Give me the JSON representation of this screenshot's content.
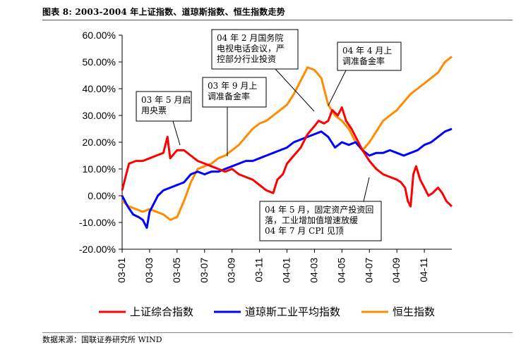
{
  "header": {
    "title": "图表 8:    2003-2004 年上证指数、道琼斯指数、恒生指数走势"
  },
  "footer": {
    "source": "数据来源：国联证券研究所  WIND"
  },
  "chart_data": {
    "type": "line",
    "ylim": [
      -20,
      60
    ],
    "y_ticks": [
      "60.00%",
      "50.00%",
      "40.00%",
      "30.00%",
      "20.00%",
      "10.00%",
      "0.00%",
      "-10.00%",
      "-20.00%"
    ],
    "y_tick_values": [
      60,
      50,
      40,
      30,
      20,
      10,
      0,
      -10,
      -20
    ],
    "x_ticks": [
      "03-01",
      "03-03",
      "03-05",
      "03-07",
      "03-09",
      "03-11",
      "04-01",
      "04-03",
      "04-05",
      "04-07",
      "04-09",
      "04-11"
    ],
    "x_range_months": [
      0,
      24
    ],
    "series": [
      {
        "name": "上证综合指数",
        "color": "#ff0000",
        "points": [
          [
            0,
            2
          ],
          [
            0.3,
            8
          ],
          [
            0.5,
            12
          ],
          [
            1,
            13
          ],
          [
            1.5,
            13
          ],
          [
            2,
            14
          ],
          [
            2.5,
            15
          ],
          [
            3,
            16
          ],
          [
            3.3,
            22
          ],
          [
            3.5,
            14
          ],
          [
            4,
            17
          ],
          [
            4.5,
            17
          ],
          [
            5,
            15
          ],
          [
            5.5,
            13
          ],
          [
            6,
            12
          ],
          [
            6.5,
            11
          ],
          [
            7,
            10
          ],
          [
            7.5,
            9
          ],
          [
            8,
            10
          ],
          [
            8.5,
            8
          ],
          [
            9,
            7
          ],
          [
            9.5,
            6
          ],
          [
            10,
            4
          ],
          [
            10.5,
            2
          ],
          [
            11,
            1
          ],
          [
            11.3,
            6
          ],
          [
            11.7,
            8
          ],
          [
            12,
            12
          ],
          [
            12.5,
            15
          ],
          [
            13,
            18
          ],
          [
            13.5,
            23
          ],
          [
            14,
            26
          ],
          [
            14.3,
            28
          ],
          [
            14.7,
            27
          ],
          [
            15,
            28
          ],
          [
            15.3,
            32
          ],
          [
            15.7,
            30
          ],
          [
            16,
            33
          ],
          [
            16.3,
            28
          ],
          [
            16.7,
            25
          ],
          [
            17,
            22
          ],
          [
            17.5,
            17
          ],
          [
            18,
            13
          ],
          [
            18.5,
            10
          ],
          [
            19,
            8
          ],
          [
            19.5,
            7
          ],
          [
            20,
            6
          ],
          [
            20.3,
            5
          ],
          [
            20.6,
            3
          ],
          [
            20.8,
            -2
          ],
          [
            21,
            -4
          ],
          [
            21.2,
            8
          ],
          [
            21.4,
            11
          ],
          [
            21.7,
            6
          ],
          [
            22,
            3
          ],
          [
            22.3,
            0
          ],
          [
            22.6,
            1
          ],
          [
            23,
            3
          ],
          [
            23.3,
            1
          ],
          [
            23.6,
            -2
          ],
          [
            24,
            -4
          ]
        ]
      },
      {
        "name": "道琼斯工业平均指数",
        "color": "#0000ff",
        "points": [
          [
            0,
            0
          ],
          [
            0.4,
            -4
          ],
          [
            0.8,
            -7
          ],
          [
            1.2,
            -8
          ],
          [
            1.5,
            -9
          ],
          [
            1.8,
            -12
          ],
          [
            2,
            -6
          ],
          [
            2.3,
            -3
          ],
          [
            2.6,
            0
          ],
          [
            3,
            2
          ],
          [
            3.5,
            3
          ],
          [
            4,
            4
          ],
          [
            4.5,
            5
          ],
          [
            5,
            8
          ],
          [
            5.5,
            9
          ],
          [
            6,
            8
          ],
          [
            6.5,
            9
          ],
          [
            7,
            9
          ],
          [
            7.5,
            10
          ],
          [
            8,
            11
          ],
          [
            8.5,
            12
          ],
          [
            9,
            13
          ],
          [
            9.5,
            13
          ],
          [
            10,
            14
          ],
          [
            10.5,
            15
          ],
          [
            11,
            16
          ],
          [
            11.5,
            17
          ],
          [
            12,
            18
          ],
          [
            12.5,
            20
          ],
          [
            13,
            21
          ],
          [
            13.5,
            22
          ],
          [
            14,
            23
          ],
          [
            14.5,
            24
          ],
          [
            15,
            22
          ],
          [
            15.5,
            18
          ],
          [
            16,
            20
          ],
          [
            16.5,
            19
          ],
          [
            17,
            20
          ],
          [
            17.5,
            17
          ],
          [
            18,
            15
          ],
          [
            18.5,
            16
          ],
          [
            19,
            16
          ],
          [
            19.5,
            17
          ],
          [
            20,
            16
          ],
          [
            20.5,
            15
          ],
          [
            21,
            16
          ],
          [
            21.5,
            17
          ],
          [
            22,
            19
          ],
          [
            22.5,
            20
          ],
          [
            23,
            22
          ],
          [
            23.5,
            24
          ],
          [
            24,
            25
          ]
        ]
      },
      {
        "name": "恒生指数",
        "color": "#ff8c00",
        "points": [
          [
            0,
            -2
          ],
          [
            0.5,
            -4
          ],
          [
            1,
            -5
          ],
          [
            1.5,
            -6
          ],
          [
            2,
            -5
          ],
          [
            2.5,
            -6
          ],
          [
            3,
            -7
          ],
          [
            3.5,
            -9
          ],
          [
            4,
            -8
          ],
          [
            4.5,
            -2
          ],
          [
            5,
            5
          ],
          [
            5.5,
            10
          ],
          [
            6,
            11
          ],
          [
            6.5,
            12
          ],
          [
            7,
            14
          ],
          [
            7.5,
            15
          ],
          [
            8,
            17
          ],
          [
            8.5,
            19
          ],
          [
            9,
            22
          ],
          [
            9.5,
            25
          ],
          [
            10,
            27
          ],
          [
            10.5,
            28
          ],
          [
            11,
            30
          ],
          [
            11.5,
            32
          ],
          [
            12,
            34
          ],
          [
            12.5,
            38
          ],
          [
            13,
            43
          ],
          [
            13.5,
            48
          ],
          [
            14,
            47
          ],
          [
            14.5,
            44
          ],
          [
            15,
            34
          ],
          [
            15.5,
            30
          ],
          [
            16,
            28
          ],
          [
            16.5,
            25
          ],
          [
            17,
            20
          ],
          [
            17.5,
            17
          ],
          [
            18,
            20
          ],
          [
            18.5,
            24
          ],
          [
            19,
            28
          ],
          [
            19.5,
            30
          ],
          [
            20,
            32
          ],
          [
            20.5,
            35
          ],
          [
            21,
            38
          ],
          [
            21.5,
            40
          ],
          [
            22,
            42
          ],
          [
            22.5,
            44
          ],
          [
            23,
            46
          ],
          [
            23.5,
            50
          ],
          [
            24,
            52
          ]
        ]
      }
    ],
    "annotations": [
      {
        "lines": [
          "03 年 5 月启",
          "用央票"
        ]
      },
      {
        "lines": [
          "03 年 9 月上",
          "调准备金率"
        ]
      },
      {
        "lines": [
          "04 年 2 月国务院",
          "电视电话会议，严",
          "控部分行业投资"
        ]
      },
      {
        "lines": [
          "04 年 4 月上",
          "调准备金率"
        ]
      },
      {
        "lines": [
          "04 年 5 月，固定资产投资回",
          "落，工业增加值增速放缓",
          "04 年 7 月 CPI 见顶"
        ]
      }
    ]
  }
}
